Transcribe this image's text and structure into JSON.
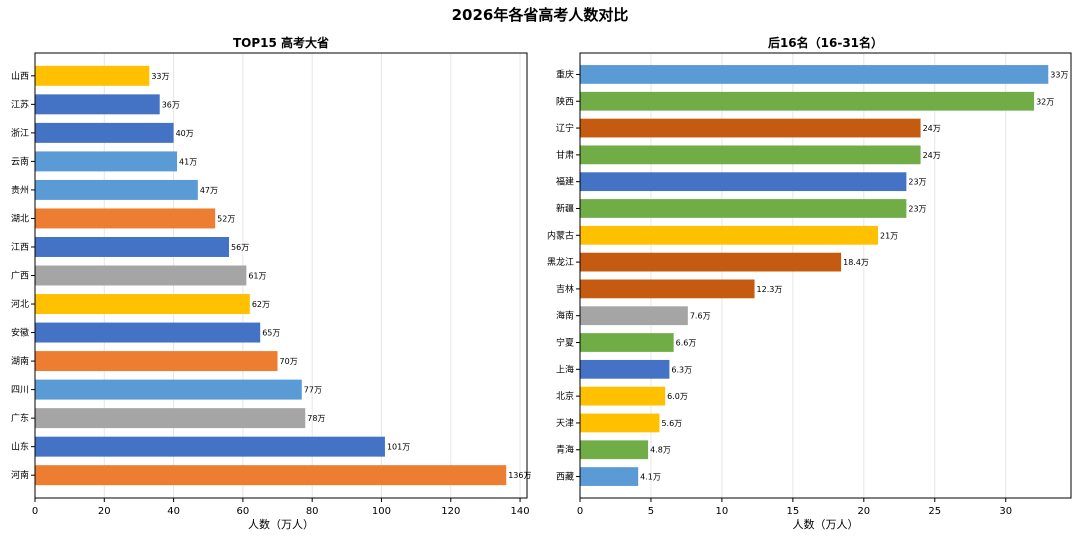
{
  "title": "2026年各省高考人数对比",
  "colors": {
    "gold": "#ffc000",
    "blue": "#4472c4",
    "lightblue": "#5b9bd5",
    "orange": "#ed7d31",
    "gray": "#a5a5a5",
    "green": "#70ad47",
    "darkorange": "#c55a11"
  },
  "chart_data": [
    {
      "type": "bar",
      "orientation": "horizontal",
      "title": "TOP15 高考大省",
      "xlabel": "人数（万人）",
      "ylabel": "",
      "xlim": [
        0,
        142
      ],
      "xticks": [
        0,
        20,
        40,
        60,
        80,
        100,
        120,
        140
      ],
      "grid": "vertical",
      "categories": [
        "山西",
        "江苏",
        "浙江",
        "云南",
        "贵州",
        "湖北",
        "江西",
        "广西",
        "河北",
        "安徽",
        "湖南",
        "四川",
        "广东",
        "山东",
        "河南"
      ],
      "values": [
        33,
        36,
        40,
        41,
        47,
        52,
        56,
        61,
        62,
        65,
        70,
        77,
        78,
        101,
        136
      ],
      "data_labels": [
        "33万",
        "36万",
        "40万",
        "41万",
        "47万",
        "52万",
        "56万",
        "61万",
        "62万",
        "65万",
        "70万",
        "77万",
        "78万",
        "101万",
        "136万"
      ],
      "bar_colors": [
        "gold",
        "blue",
        "blue",
        "lightblue",
        "lightblue",
        "orange",
        "blue",
        "gray",
        "gold",
        "blue",
        "orange",
        "lightblue",
        "gray",
        "blue",
        "orange"
      ]
    },
    {
      "type": "bar",
      "orientation": "horizontal",
      "title": "后16名（16-31名）",
      "xlabel": "人数（万人）",
      "ylabel": "",
      "xlim": [
        0,
        34.6
      ],
      "xticks": [
        0,
        5,
        10,
        15,
        20,
        25,
        30
      ],
      "grid": "vertical",
      "categories": [
        "重庆",
        "陕西",
        "辽宁",
        "甘肃",
        "福建",
        "新疆",
        "内蒙古",
        "黑龙江",
        "吉林",
        "海南",
        "宁夏",
        "上海",
        "北京",
        "天津",
        "青海",
        "西藏"
      ],
      "values": [
        33,
        32,
        24,
        24,
        23,
        23,
        21,
        18.4,
        12.3,
        7.6,
        6.6,
        6.3,
        6.0,
        5.6,
        4.8,
        4.1
      ],
      "data_labels": [
        "33万",
        "32万",
        "24万",
        "24万",
        "23万",
        "23万",
        "21万",
        "18.4万",
        "12.3万",
        "7.6万",
        "6.6万",
        "6.3万",
        "6.0万",
        "5.6万",
        "4.8万",
        "4.1万"
      ],
      "bar_colors": [
        "lightblue",
        "green",
        "darkorange",
        "green",
        "blue",
        "green",
        "gold",
        "darkorange",
        "darkorange",
        "gray",
        "green",
        "blue",
        "gold",
        "gold",
        "green",
        "lightblue"
      ]
    }
  ]
}
